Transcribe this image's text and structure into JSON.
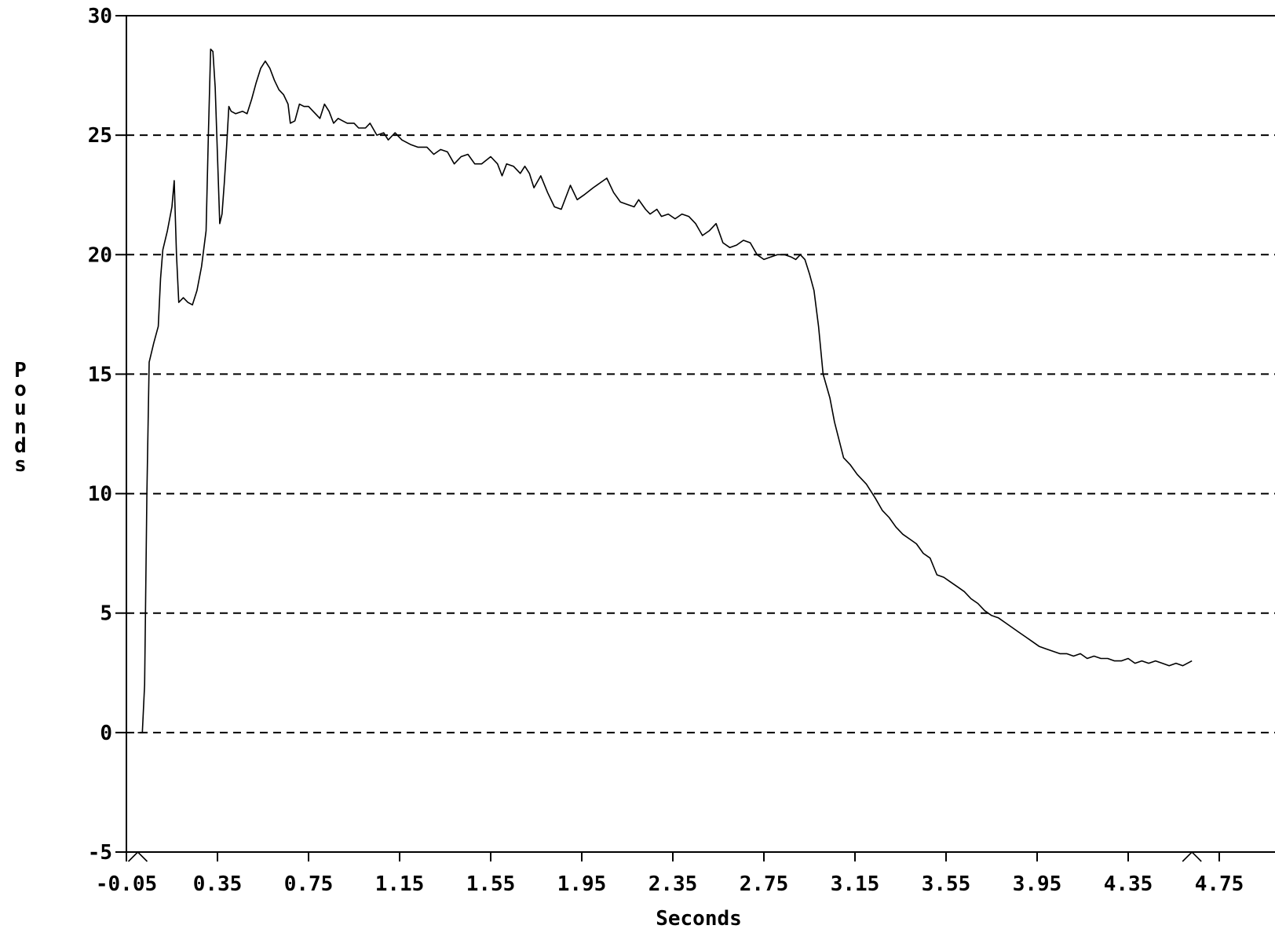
{
  "chart_data": {
    "type": "line",
    "xlabel": "Seconds",
    "ylabel": "Pounds",
    "xlim": [
      -0.05,
      4.95
    ],
    "ylim": [
      -5,
      30
    ],
    "x_ticks": [
      -0.05,
      0.35,
      0.75,
      1.15,
      1.55,
      1.95,
      2.35,
      2.75,
      3.15,
      3.55,
      3.95,
      4.35,
      4.75
    ],
    "x_tick_labels": [
      "-0.05",
      "0.35",
      "0.75",
      "1.15",
      "1.55",
      "1.95",
      "2.35",
      "2.75",
      "3.15",
      "3.55",
      "3.95",
      "4.35",
      "4.75"
    ],
    "y_ticks": [
      -5,
      0,
      5,
      10,
      15,
      20,
      25,
      30
    ],
    "y_tick_labels": [
      "-5",
      "0",
      "5",
      "10",
      "15",
      "20",
      "25",
      "30"
    ],
    "grid": "horizontal-dashed",
    "markers_x": [
      0.0,
      4.63
    ],
    "series": [
      {
        "color": "#000000",
        "points": [
          [
            0.0,
            0.0
          ],
          [
            0.02,
            0.0
          ],
          [
            0.03,
            2.0
          ],
          [
            0.04,
            10.0
          ],
          [
            0.05,
            15.5
          ],
          [
            0.07,
            16.3
          ],
          [
            0.09,
            17.0
          ],
          [
            0.1,
            19.0
          ],
          [
            0.11,
            20.2
          ],
          [
            0.13,
            21.0
          ],
          [
            0.15,
            22.0
          ],
          [
            0.16,
            23.1
          ],
          [
            0.17,
            20.0
          ],
          [
            0.18,
            18.0
          ],
          [
            0.2,
            18.2
          ],
          [
            0.22,
            18.0
          ],
          [
            0.24,
            17.9
          ],
          [
            0.26,
            18.5
          ],
          [
            0.28,
            19.5
          ],
          [
            0.3,
            21.0
          ],
          [
            0.31,
            25.0
          ],
          [
            0.32,
            28.6
          ],
          [
            0.33,
            28.5
          ],
          [
            0.34,
            27.0
          ],
          [
            0.36,
            21.3
          ],
          [
            0.37,
            21.7
          ],
          [
            0.38,
            23.0
          ],
          [
            0.39,
            24.5
          ],
          [
            0.4,
            26.2
          ],
          [
            0.41,
            26.0
          ],
          [
            0.43,
            25.9
          ],
          [
            0.46,
            26.0
          ],
          [
            0.48,
            25.9
          ],
          [
            0.5,
            26.5
          ],
          [
            0.52,
            27.2
          ],
          [
            0.54,
            27.8
          ],
          [
            0.56,
            28.1
          ],
          [
            0.58,
            27.8
          ],
          [
            0.6,
            27.3
          ],
          [
            0.62,
            26.9
          ],
          [
            0.64,
            26.7
          ],
          [
            0.66,
            26.3
          ],
          [
            0.67,
            25.5
          ],
          [
            0.69,
            25.6
          ],
          [
            0.71,
            26.3
          ],
          [
            0.73,
            26.2
          ],
          [
            0.75,
            26.2
          ],
          [
            0.77,
            26.0
          ],
          [
            0.8,
            25.7
          ],
          [
            0.82,
            26.3
          ],
          [
            0.84,
            26.0
          ],
          [
            0.86,
            25.5
          ],
          [
            0.88,
            25.7
          ],
          [
            0.9,
            25.6
          ],
          [
            0.92,
            25.5
          ],
          [
            0.95,
            25.5
          ],
          [
            0.97,
            25.3
          ],
          [
            1.0,
            25.3
          ],
          [
            1.02,
            25.5
          ],
          [
            1.05,
            25.0
          ],
          [
            1.08,
            25.1
          ],
          [
            1.1,
            24.8
          ],
          [
            1.13,
            25.1
          ],
          [
            1.16,
            24.8
          ],
          [
            1.2,
            24.6
          ],
          [
            1.23,
            24.5
          ],
          [
            1.27,
            24.5
          ],
          [
            1.3,
            24.2
          ],
          [
            1.33,
            24.4
          ],
          [
            1.36,
            24.3
          ],
          [
            1.39,
            23.8
          ],
          [
            1.42,
            24.1
          ],
          [
            1.45,
            24.2
          ],
          [
            1.48,
            23.8
          ],
          [
            1.51,
            23.8
          ],
          [
            1.55,
            24.1
          ],
          [
            1.58,
            23.8
          ],
          [
            1.6,
            23.3
          ],
          [
            1.62,
            23.8
          ],
          [
            1.65,
            23.7
          ],
          [
            1.68,
            23.4
          ],
          [
            1.7,
            23.7
          ],
          [
            1.72,
            23.4
          ],
          [
            1.74,
            22.8
          ],
          [
            1.77,
            23.3
          ],
          [
            1.8,
            22.6
          ],
          [
            1.83,
            22.0
          ],
          [
            1.86,
            21.9
          ],
          [
            1.9,
            22.9
          ],
          [
            1.93,
            22.3
          ],
          [
            1.96,
            22.5
          ],
          [
            2.0,
            22.8
          ],
          [
            2.03,
            23.0
          ],
          [
            2.06,
            23.2
          ],
          [
            2.09,
            22.6
          ],
          [
            2.12,
            22.2
          ],
          [
            2.15,
            22.1
          ],
          [
            2.18,
            22.0
          ],
          [
            2.2,
            22.3
          ],
          [
            2.23,
            21.9
          ],
          [
            2.25,
            21.7
          ],
          [
            2.28,
            21.9
          ],
          [
            2.3,
            21.6
          ],
          [
            2.33,
            21.7
          ],
          [
            2.36,
            21.5
          ],
          [
            2.39,
            21.7
          ],
          [
            2.42,
            21.6
          ],
          [
            2.45,
            21.3
          ],
          [
            2.48,
            20.8
          ],
          [
            2.51,
            21.0
          ],
          [
            2.54,
            21.3
          ],
          [
            2.57,
            20.5
          ],
          [
            2.6,
            20.3
          ],
          [
            2.63,
            20.4
          ],
          [
            2.66,
            20.6
          ],
          [
            2.69,
            20.5
          ],
          [
            2.72,
            20.0
          ],
          [
            2.75,
            19.8
          ],
          [
            2.78,
            19.9
          ],
          [
            2.81,
            20.0
          ],
          [
            2.84,
            20.0
          ],
          [
            2.87,
            19.9
          ],
          [
            2.89,
            19.8
          ],
          [
            2.91,
            20.0
          ],
          [
            2.93,
            19.8
          ],
          [
            2.95,
            19.2
          ],
          [
            2.97,
            18.5
          ],
          [
            2.99,
            17.0
          ],
          [
            3.01,
            15.0
          ],
          [
            3.04,
            14.0
          ],
          [
            3.06,
            13.0
          ],
          [
            3.1,
            11.5
          ],
          [
            3.13,
            11.2
          ],
          [
            3.16,
            10.8
          ],
          [
            3.2,
            10.4
          ],
          [
            3.24,
            9.8
          ],
          [
            3.27,
            9.3
          ],
          [
            3.3,
            9.0
          ],
          [
            3.33,
            8.6
          ],
          [
            3.36,
            8.3
          ],
          [
            3.39,
            8.1
          ],
          [
            3.42,
            7.9
          ],
          [
            3.45,
            7.5
          ],
          [
            3.48,
            7.3
          ],
          [
            3.51,
            6.6
          ],
          [
            3.54,
            6.5
          ],
          [
            3.57,
            6.3
          ],
          [
            3.6,
            6.1
          ],
          [
            3.63,
            5.9
          ],
          [
            3.66,
            5.6
          ],
          [
            3.69,
            5.4
          ],
          [
            3.72,
            5.1
          ],
          [
            3.75,
            4.9
          ],
          [
            3.78,
            4.8
          ],
          [
            3.81,
            4.6
          ],
          [
            3.84,
            4.4
          ],
          [
            3.87,
            4.2
          ],
          [
            3.9,
            4.0
          ],
          [
            3.93,
            3.8
          ],
          [
            3.96,
            3.6
          ],
          [
            3.99,
            3.5
          ],
          [
            4.02,
            3.4
          ],
          [
            4.05,
            3.3
          ],
          [
            4.08,
            3.3
          ],
          [
            4.11,
            3.2
          ],
          [
            4.14,
            3.3
          ],
          [
            4.17,
            3.1
          ],
          [
            4.2,
            3.2
          ],
          [
            4.23,
            3.1
          ],
          [
            4.26,
            3.1
          ],
          [
            4.29,
            3.0
          ],
          [
            4.32,
            3.0
          ],
          [
            4.35,
            3.1
          ],
          [
            4.38,
            2.9
          ],
          [
            4.41,
            3.0
          ],
          [
            4.44,
            2.9
          ],
          [
            4.47,
            3.0
          ],
          [
            4.5,
            2.9
          ],
          [
            4.53,
            2.8
          ],
          [
            4.56,
            2.9
          ],
          [
            4.59,
            2.8
          ],
          [
            4.63,
            3.0
          ]
        ]
      }
    ]
  }
}
